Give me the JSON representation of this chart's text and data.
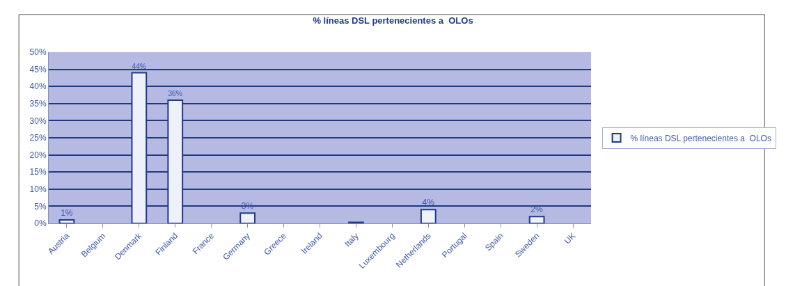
{
  "chart_data": {
    "type": "bar",
    "title": "% líneas DSL pertenecientes a  OLOs",
    "categories": [
      "Austria",
      "Belgium",
      "Denmark",
      "Finland",
      "France",
      "Germany",
      "Greece",
      "Ireland",
      "Italy",
      "Luxembourg",
      "Netherlands",
      "Portugal",
      "Spain",
      "Sweden",
      "UK"
    ],
    "series": [
      {
        "name": "% líneas DSL pertenecientes a  OLOs",
        "color": "#eef0fa",
        "values": [
          1,
          null,
          44,
          36,
          null,
          3,
          null,
          null,
          0.3,
          null,
          4,
          null,
          null,
          2,
          null
        ]
      }
    ],
    "value_labels": [
      "1%",
      null,
      "44%",
      "36%",
      null,
      "3%",
      null,
      null,
      null,
      null,
      "4%",
      null,
      null,
      "2%",
      null
    ],
    "ylim": [
      0,
      50
    ],
    "yticks": [
      {
        "value": 0,
        "label": "0%"
      },
      {
        "value": 5,
        "label": "5%"
      },
      {
        "value": 10,
        "label": "10%"
      },
      {
        "value": 15,
        "label": "15%"
      },
      {
        "value": 20,
        "label": "20%"
      },
      {
        "value": 25,
        "label": "25%"
      },
      {
        "value": 30,
        "label": "30%"
      },
      {
        "value": 35,
        "label": "35%"
      },
      {
        "value": 40,
        "label": "40%"
      },
      {
        "value": 45,
        "label": "45%"
      },
      {
        "value": 50,
        "label": "50%"
      }
    ],
    "grid": "y",
    "legend": "right"
  }
}
